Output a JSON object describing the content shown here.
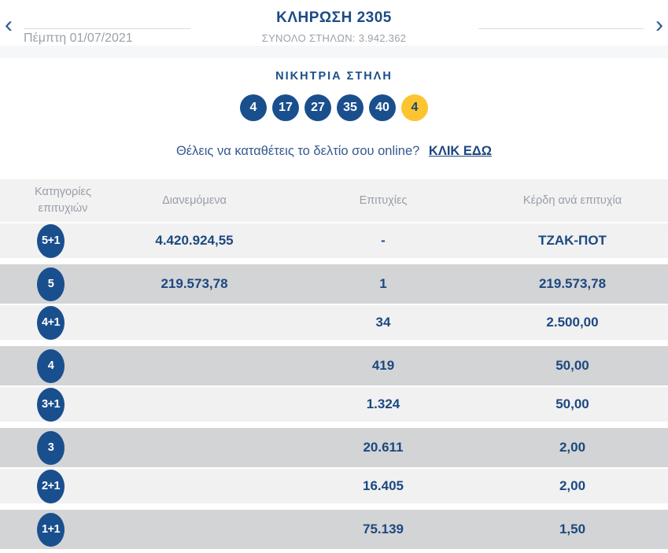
{
  "header": {
    "title": "ΚΛΗΡΩΣΗ 2305",
    "subtitle": "ΣΥΝΟΛΟ ΣΤΗΛΩΝ: 3.942.362",
    "date": "Πέμπτη 01/07/2021",
    "prev_icon": "‹",
    "next_icon": "›"
  },
  "winning": {
    "label": "ΝΙΚΗΤΡΙΑ ΣΤΗΛΗ",
    "numbers": [
      "4",
      "17",
      "27",
      "35",
      "40"
    ],
    "joker": "4"
  },
  "promo": {
    "text": "Θέλεις να καταθέτεις το δελτίο σου online?",
    "link_label": "ΚΛΙΚ ΕΔΩ"
  },
  "table": {
    "headers": {
      "category": "Κατηγορίες επιτυχιών",
      "distributed": "Διανεμόμενα",
      "winners": "Επιτυχίες",
      "payout": "Κέρδη ανά επιτυχία"
    },
    "rows": [
      {
        "category": "5+1",
        "distributed": "4.420.924,55",
        "winners": "-",
        "payout": "ΤΖΑΚ-ΠΟΤ"
      },
      {
        "category": "5",
        "distributed": "219.573,78",
        "winners": "1",
        "payout": "219.573,78"
      },
      {
        "category": "4+1",
        "distributed": "",
        "winners": "34",
        "payout": "2.500,00"
      },
      {
        "category": "4",
        "distributed": "",
        "winners": "419",
        "payout": "50,00"
      },
      {
        "category": "3+1",
        "distributed": "",
        "winners": "1.324",
        "payout": "50,00"
      },
      {
        "category": "3",
        "distributed": "",
        "winners": "20.611",
        "payout": "2,00"
      },
      {
        "category": "2+1",
        "distributed": "",
        "winners": "16.405",
        "payout": "2,00"
      },
      {
        "category": "1+1",
        "distributed": "",
        "winners": "75.139",
        "payout": "1,50"
      }
    ]
  },
  "colors": {
    "navy_text": "#1c4880",
    "ball_navy": "#1a4f8e",
    "joker_yellow": "#fdc431",
    "row_light": "#f1f1f2",
    "row_dark": "#d3d4d6",
    "header_row_bg": "#f2f2f3",
    "muted_gray_text": "#9aa2ab",
    "strip_gray": "#f6f7f8"
  }
}
